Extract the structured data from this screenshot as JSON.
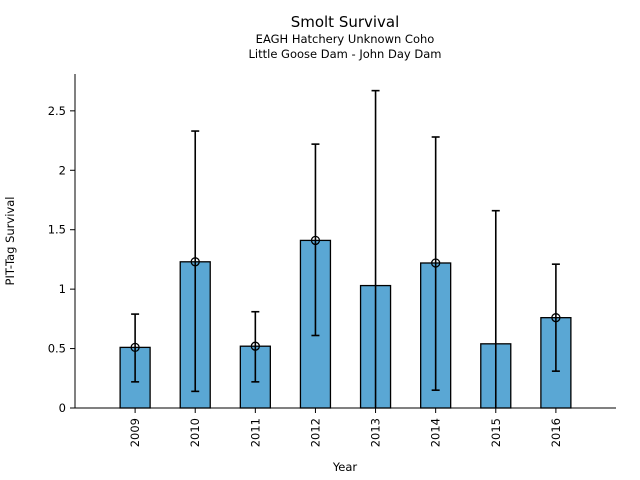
{
  "page": {
    "background": "#ffffff"
  },
  "chart_data": {
    "type": "bar",
    "title": "Smolt Survival",
    "subtitle1": "EAGH Hatchery Unknown Coho",
    "subtitle2": "Little Goose Dam - John Day Dam",
    "xlabel": "Year",
    "ylabel": "PIT-Tag Survival",
    "categories": [
      "2009",
      "2010",
      "2011",
      "2012",
      "2013",
      "2014",
      "2015",
      "2016"
    ],
    "values": [
      0.51,
      1.23,
      0.52,
      1.41,
      1.03,
      1.22,
      0.54,
      0.76
    ],
    "error_low": [
      0.22,
      0.14,
      0.22,
      0.61,
      0,
      0.15,
      0,
      0.31
    ],
    "error_high": [
      0.79,
      2.33,
      0.81,
      2.22,
      2.67,
      2.28,
      1.66,
      1.21
    ],
    "lower_cap_shown": [
      true,
      true,
      true,
      true,
      false,
      true,
      false,
      true
    ],
    "point_markers": [
      0.51,
      1.23,
      0.52,
      1.41,
      null,
      1.22,
      null,
      0.76
    ],
    "yticks": [
      0,
      0.5,
      1,
      1.5,
      2,
      2.5
    ],
    "ylim": [
      0,
      2.81
    ],
    "grid": false,
    "legend": null,
    "xtick_rotation_deg": 90,
    "colors": {
      "bar_fill": "#5AA7D4",
      "bar_edge": "#000000",
      "error_bar": "#000000",
      "marker_edge": "#000000",
      "axis": "#000000",
      "text": "#000000"
    }
  }
}
